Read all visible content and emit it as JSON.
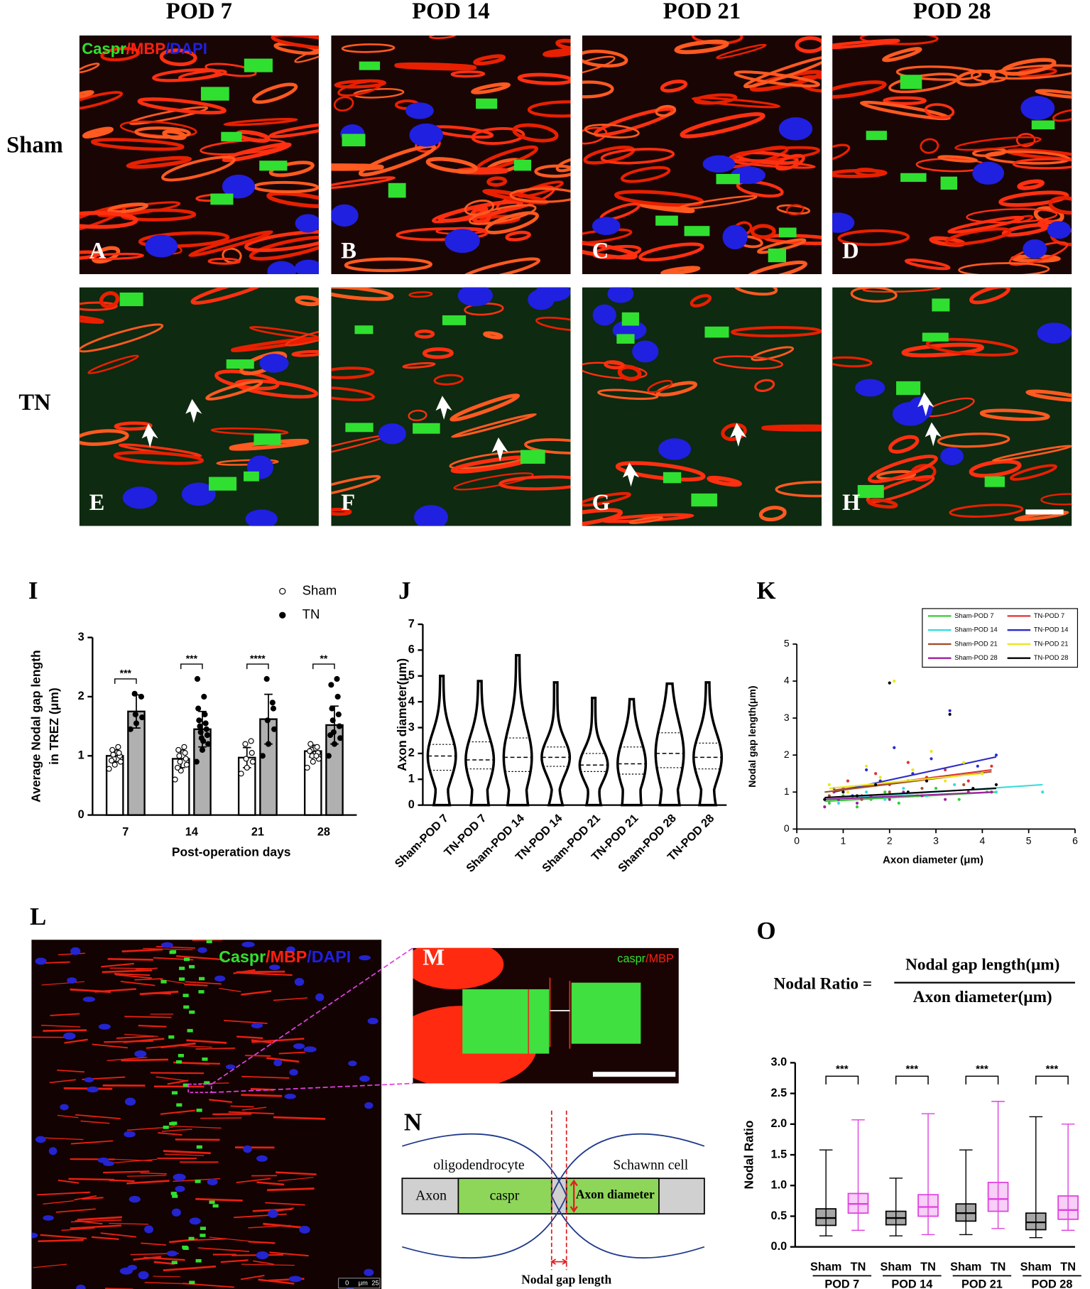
{
  "column_headers": [
    "POD 7",
    "POD 14",
    "POD 21",
    "POD 28"
  ],
  "row_labels": [
    "Sham",
    "TN"
  ],
  "panel_letters": [
    "A",
    "B",
    "C",
    "D",
    "E",
    "F",
    "G",
    "H",
    "I",
    "J",
    "K",
    "L",
    "M",
    "N",
    "O"
  ],
  "stain_label": [
    "Caspr",
    "/MBP",
    "/DAPI"
  ],
  "panel_L": {
    "stain_label": [
      "Caspr",
      "/MBP",
      "/DAPI"
    ],
    "scale_bar": [
      "0",
      "μm",
      "25"
    ]
  },
  "panel_M": {
    "stain_label": [
      "caspr",
      "/MBP"
    ]
  },
  "diagram_N": {
    "oligodendrocyte": "oligodendrocyte",
    "schwann": "Schawnn cell",
    "axon": "Axon",
    "caspr": "caspr",
    "axon_diameter": "Axon diameter",
    "nodal_gap": "Nodal gap length"
  },
  "formula_O": {
    "left": "Nodal Ratio =",
    "numerator": "Nodal gap length(μm)",
    "denominator": "Axon diameter(μm)"
  },
  "chart_data": [
    {
      "type": "bar",
      "xlabel": "Post-operation  days",
      "ylabel": [
        "Average Nodal gap length",
        "in TREZ  (μm)"
      ],
      "categories": [
        "7",
        "14",
        "21",
        "28"
      ],
      "ylim": [
        0,
        3
      ],
      "yticks": [
        0,
        1,
        2,
        3
      ],
      "significance": [
        "***",
        "***",
        "****",
        "**"
      ],
      "series": [
        {
          "name": "Sham",
          "color": "#ffffff",
          "point_fill": "#ffffff",
          "values": [
            1.0,
            0.95,
            0.97,
            1.08
          ],
          "errors": [
            0.1,
            0.15,
            0.17,
            0.1
          ],
          "points": [
            [
              0.78,
              0.85,
              0.9,
              0.95,
              1.0,
              1.02,
              1.05,
              1.1,
              1.15,
              0.92
            ],
            [
              0.6,
              0.75,
              0.85,
              0.9,
              0.95,
              1.0,
              1.05,
              1.1,
              1.15,
              0.8
            ],
            [
              0.7,
              0.8,
              0.9,
              0.95,
              1.05,
              1.2,
              1.25
            ],
            [
              0.8,
              0.9,
              0.95,
              1.0,
              1.05,
              1.1,
              1.15,
              1.2,
              1.0,
              1.08
            ]
          ]
        },
        {
          "name": "TN",
          "color": "#b0b0b0",
          "point_fill": "#000000",
          "values": [
            1.75,
            1.45,
            1.62,
            1.52
          ],
          "errors": [
            0.28,
            0.3,
            0.42,
            0.32
          ],
          "points": [
            [
              1.45,
              1.55,
              1.65,
              1.7,
              2.0,
              2.05
            ],
            [
              0.9,
              1.1,
              1.2,
              1.3,
              1.35,
              1.4,
              1.45,
              1.5,
              1.55,
              1.6,
              1.7,
              1.8,
              2.0,
              2.3,
              1.25
            ],
            [
              1.0,
              1.2,
              1.45,
              1.6,
              1.8,
              2.3,
              1.9
            ],
            [
              1.0,
              1.2,
              1.3,
              1.4,
              1.5,
              1.6,
              1.7,
              1.8,
              2.0,
              2.2,
              2.3,
              1.35
            ]
          ]
        }
      ]
    },
    {
      "type": "violin",
      "ylabel": "Axon  diameter(μm)",
      "categories": [
        "Sham-POD 7",
        "TN-POD 7",
        "Sham-POD 14",
        "TN-POD 14",
        "Sham-POD 21",
        "TN-POD 21",
        "Sham-POD 28",
        "TN-POD 28"
      ],
      "ylim": [
        0,
        7
      ],
      "yticks": [
        0,
        1,
        2,
        3,
        4,
        5,
        6,
        7
      ],
      "min": [
        0,
        0,
        0,
        0,
        0,
        0,
        0,
        0
      ],
      "q1": [
        1.35,
        1.4,
        1.3,
        1.5,
        1.3,
        1.2,
        1.45,
        1.4
      ],
      "median": [
        1.9,
        1.75,
        1.85,
        1.85,
        1.55,
        1.6,
        2.0,
        1.85
      ],
      "q3": [
        2.35,
        2.45,
        2.6,
        2.25,
        2.0,
        2.25,
        2.8,
        2.4
      ],
      "max": [
        5.0,
        4.8,
        5.8,
        4.75,
        4.15,
        4.1,
        4.7,
        4.75
      ]
    },
    {
      "type": "scatter",
      "xlabel": "Axon diameter   (μm)",
      "ylabel": "Nodal gap length(μm)",
      "xlim": [
        0,
        6
      ],
      "xticks": [
        0,
        1,
        2,
        3,
        4,
        5,
        6
      ],
      "ylim": [
        0,
        5
      ],
      "yticks": [
        0,
        1,
        2,
        3,
        4,
        5
      ],
      "series": [
        {
          "name": "Sham-POD 7",
          "color": "#33cc33",
          "x": [
            0.7,
            1.0,
            1.3,
            1.6,
            1.9,
            2.2,
            2.6,
            3.0,
            3.5,
            4.1
          ],
          "y": [
            0.7,
            0.9,
            0.6,
            0.8,
            1.0,
            0.7,
            0.9,
            1.1,
            0.8,
            1.0
          ],
          "fit": {
            "x": [
              0.6,
              4.3
            ],
            "y": [
              0.75,
              1.0
            ]
          }
        },
        {
          "name": "TN-POD 7",
          "color": "#e03030",
          "x": [
            0.8,
            1.1,
            1.4,
            1.7,
            2.0,
            2.4,
            2.8,
            3.2,
            3.7,
            4.2
          ],
          "y": [
            1.0,
            1.3,
            0.9,
            1.5,
            1.2,
            1.8,
            1.4,
            1.6,
            1.3,
            1.7
          ],
          "fit": {
            "x": [
              0.8,
              4.2
            ],
            "y": [
              1.05,
              1.6
            ]
          }
        },
        {
          "name": "Sham-POD 14",
          "color": "#33dddd",
          "x": [
            0.6,
            0.9,
            1.2,
            1.5,
            1.9,
            2.3,
            2.8,
            3.4,
            4.3,
            5.3
          ],
          "y": [
            0.8,
            0.7,
            0.9,
            1.0,
            0.8,
            1.1,
            0.9,
            1.2,
            1.0,
            1.0
          ],
          "fit": {
            "x": [
              0.6,
              5.3
            ],
            "y": [
              0.8,
              1.2
            ]
          }
        },
        {
          "name": "TN-POD 14",
          "color": "#2b2bc8",
          "x": [
            0.8,
            1.2,
            1.5,
            1.8,
            2.1,
            2.5,
            2.9,
            3.3,
            3.9,
            4.3
          ],
          "y": [
            1.1,
            0.9,
            1.6,
            1.3,
            2.2,
            1.5,
            1.9,
            3.2,
            1.7,
            2.0
          ],
          "fit": {
            "x": [
              0.8,
              4.3
            ],
            "y": [
              1.0,
              1.95
            ]
          }
        },
        {
          "name": "Sham-POD 21",
          "color": "#a0522d",
          "x": [
            0.7,
            1.0,
            1.4,
            1.7,
            2.0,
            2.4,
            2.7,
            3.1,
            3.6,
            4.0
          ],
          "y": [
            0.9,
            1.1,
            0.8,
            1.2,
            1.0,
            1.3,
            1.1,
            1.4,
            1.2,
            1.5
          ],
          "fit": {
            "x": [
              0.6,
              4.2
            ],
            "y": [
              1.0,
              1.55
            ]
          }
        },
        {
          "name": "TN-POD 21",
          "color": "#e8e820",
          "x": [
            0.7,
            1.1,
            1.5,
            1.8,
            2.1,
            2.5,
            2.9,
            3.2,
            3.6,
            4.0
          ],
          "y": [
            1.2,
            1.0,
            1.7,
            1.4,
            4.0,
            1.6,
            2.1,
            1.3,
            1.8,
            1.5
          ],
          "fit": {
            "x": [
              0.7,
              4.0
            ],
            "y": [
              1.1,
              1.5
            ]
          }
        },
        {
          "name": "Sham-POD 28",
          "color": "#a020a0",
          "x": [
            0.6,
            0.9,
            1.3,
            1.6,
            2.0,
            2.3,
            2.7,
            3.2,
            3.7,
            4.2
          ],
          "y": [
            0.6,
            0.8,
            0.7,
            0.9,
            0.8,
            1.0,
            0.9,
            0.8,
            1.0,
            1.0
          ],
          "fit": {
            "x": [
              0.6,
              4.2
            ],
            "y": [
              0.8,
              1.0
            ]
          }
        },
        {
          "name": "TN-POD 28",
          "color": "#000000",
          "x": [
            0.6,
            1.0,
            1.3,
            1.7,
            2.0,
            2.4,
            2.8,
            3.3,
            3.8,
            4.3
          ],
          "y": [
            0.8,
            1.0,
            0.9,
            1.2,
            3.95,
            1.0,
            1.3,
            3.1,
            1.1,
            1.2
          ],
          "fit": {
            "x": [
              0.6,
              4.3
            ],
            "y": [
              0.85,
              1.1
            ]
          }
        }
      ]
    },
    {
      "type": "box",
      "ylabel": "Nodal Ratio",
      "categories": [
        "POD 7",
        "POD 14",
        "POD 21",
        "POD 28"
      ],
      "ylim": [
        0,
        3
      ],
      "yticks": [
        {
          "value": 0,
          "label": "0.0"
        },
        0.5,
        {
          "value": 1,
          "label": "1.0"
        },
        1.5,
        {
          "value": 2,
          "label": "2.0"
        },
        2.5,
        {
          "value": 3,
          "label": "3.0"
        }
      ],
      "significance": [
        "***",
        "***",
        "***",
        "***"
      ],
      "series": [
        {
          "name": "Sham",
          "color": "#000000",
          "min": [
            0.18,
            0.18,
            0.2,
            0.15
          ],
          "q1": [
            0.35,
            0.36,
            0.42,
            0.28
          ],
          "median": [
            0.47,
            0.47,
            0.55,
            0.4
          ],
          "q3": [
            0.62,
            0.58,
            0.7,
            0.55
          ],
          "max": [
            1.58,
            1.12,
            1.58,
            2.12
          ]
        },
        {
          "name": "TN",
          "color": "#e040e0",
          "min": [
            0.27,
            0.2,
            0.3,
            0.27
          ],
          "q1": [
            0.55,
            0.5,
            0.58,
            0.45
          ],
          "median": [
            0.7,
            0.65,
            0.78,
            0.6
          ],
          "q3": [
            0.87,
            0.85,
            1.05,
            0.83
          ],
          "max": [
            2.07,
            2.17,
            2.37,
            2.0
          ]
        }
      ]
    }
  ]
}
